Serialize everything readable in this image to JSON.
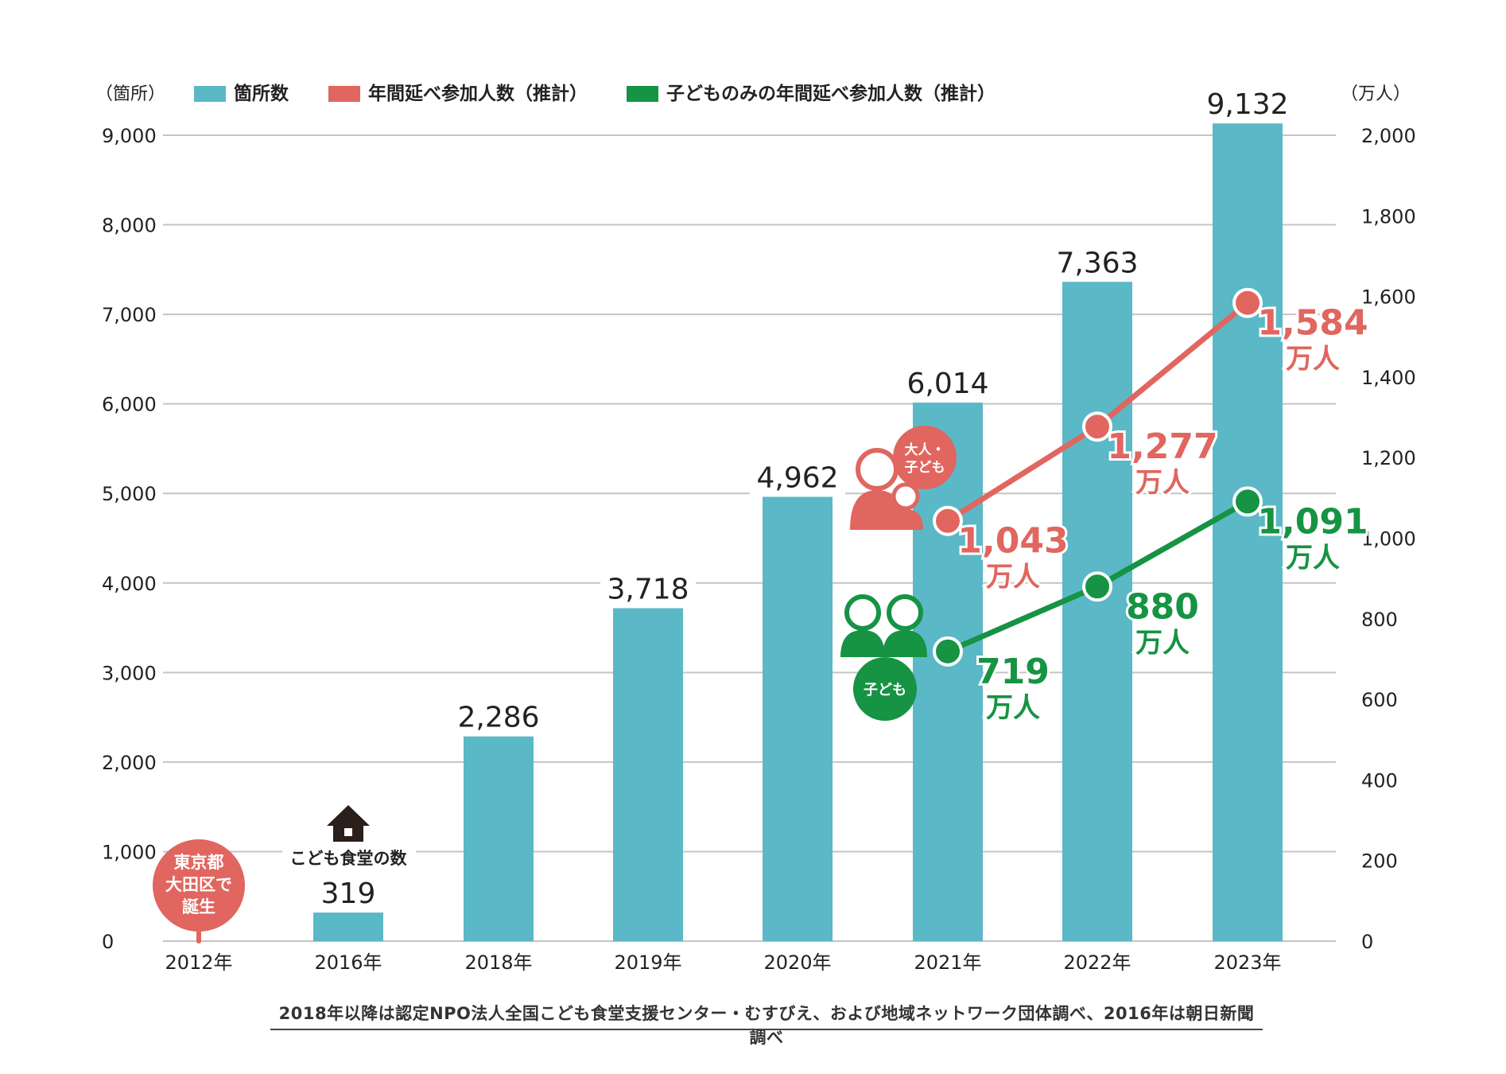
{
  "colors": {
    "bar": "#5bb8c6",
    "adult": "#e0665f",
    "child": "#169343",
    "grid": "#c4c4c4",
    "text": "#222222"
  },
  "chart_data": {
    "type": "bar",
    "categories": [
      "2012年",
      "2016年",
      "2018年",
      "2019年",
      "2020年",
      "2021年",
      "2022年",
      "2023年"
    ],
    "y_left": {
      "unit_label": "（箇所）",
      "ylim": [
        0,
        9000
      ],
      "ticks": [
        0,
        1000,
        2000,
        3000,
        4000,
        5000,
        6000,
        7000,
        8000,
        9000
      ],
      "tick_labels": [
        "0",
        "1,000",
        "2,000",
        "3,000",
        "4,000",
        "5,000",
        "6,000",
        "7,000",
        "8,000",
        "9,000"
      ]
    },
    "y_right": {
      "unit_label": "（万人）",
      "ylim": [
        0,
        2000
      ],
      "ticks": [
        0,
        200,
        400,
        600,
        800,
        1000,
        1200,
        1400,
        1600,
        1800,
        2000
      ],
      "tick_labels": [
        "0",
        "200",
        "400",
        "600",
        "800",
        "1,000",
        "1,200",
        "1,400",
        "1,600",
        "1,800",
        "2,000"
      ]
    },
    "legend": [
      {
        "label": "箇所数",
        "color": "#5bb8c6"
      },
      {
        "label": "年間延べ参加人数（推計）",
        "color": "#e0665f"
      },
      {
        "label": "子どものみの年間延べ参加人数（推計）",
        "color": "#169343"
      }
    ],
    "series": [
      {
        "name": "箇所数",
        "type": "bar",
        "axis": "left",
        "values": [
          null,
          319,
          2286,
          3718,
          4962,
          6014,
          7363,
          9132
        ],
        "labels": [
          null,
          "319",
          "2,286",
          "3,718",
          "4,962",
          "6,014",
          "7,363",
          "9,132"
        ]
      },
      {
        "name": "年間延べ参加人数（推計）",
        "type": "line",
        "axis": "right",
        "x": [
          "2021年",
          "2022年",
          "2023年"
        ],
        "values": [
          1043,
          1277,
          1584
        ],
        "labels": [
          "1,043",
          "1,277",
          "1,584"
        ],
        "unit": "万人"
      },
      {
        "name": "子どものみの年間延べ参加人数（推計）",
        "type": "line",
        "axis": "right",
        "x": [
          "2021年",
          "2022年",
          "2023年"
        ],
        "values": [
          719,
          880,
          1091
        ],
        "labels": [
          "719",
          "880",
          "1,091"
        ],
        "unit": "万人"
      }
    ],
    "annotations": {
      "birth_badge": [
        "東京都",
        "大田区で",
        "誕生"
      ],
      "count_caption": "こども食堂の数",
      "adult_badge": [
        "大人・",
        "子ども"
      ],
      "child_badge": "子ども"
    }
  },
  "source_note": "2018年以降は認定NPO法人全国こども食堂支援センター・むすびえ、および地域ネットワーク団体調べ、2016年は朝日新聞調べ"
}
